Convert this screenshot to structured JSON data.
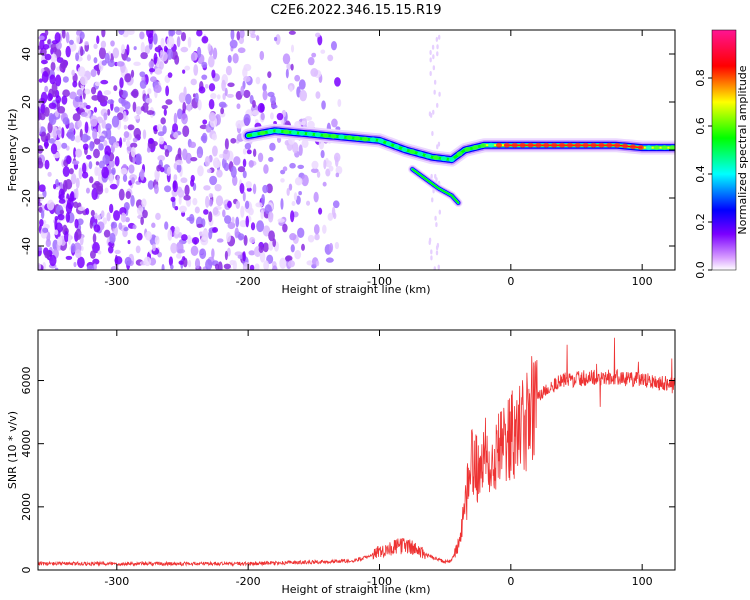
{
  "title": "C2E6.2022.346.15.15.R19",
  "chart_data": [
    {
      "type": "heatmap",
      "xlabel": "Height of straight line (km)",
      "ylabel": "Frequency (Hz)",
      "xlim": [
        -360,
        125
      ],
      "ylim": [
        -50,
        50
      ],
      "x_ticks": [
        -300,
        -200,
        -100,
        0,
        100
      ],
      "y_ticks": [
        -40,
        -20,
        0,
        20,
        40
      ],
      "colorbar": {
        "label": "Normalized spectral amplitude",
        "range": [
          0,
          1
        ],
        "ticks": [
          0.0,
          0.2,
          0.4,
          0.6,
          0.8
        ],
        "colors": [
          "#ffffff",
          "#d9a0ff",
          "#7a00ff",
          "#0000ff",
          "#00ffff",
          "#00ff00",
          "#ffff00",
          "#ff0000",
          "#ff1493"
        ]
      },
      "ridge": {
        "x": [
          -200,
          -180,
          -160,
          -140,
          -120,
          -100,
          -80,
          -60,
          -45,
          -35,
          -20,
          0,
          20,
          50,
          80,
          100,
          125
        ],
        "y": [
          6,
          8,
          7,
          6,
          5,
          4,
          0,
          -3,
          -4,
          0,
          2,
          2,
          2,
          2,
          2,
          1,
          1
        ]
      },
      "branch": {
        "x": [
          -75,
          -65,
          -55,
          -45,
          -40
        ],
        "y": [
          -8,
          -12,
          -16,
          -19,
          -22
        ]
      }
    },
    {
      "type": "line",
      "xlabel": "Height of straight line (km)",
      "ylabel": "SNR (10 * v/v)",
      "xlim": [
        -360,
        125
      ],
      "ylim": [
        0,
        7600
      ],
      "x_ticks": [
        -300,
        -200,
        -100,
        0,
        100
      ],
      "y_ticks": [
        0,
        2000,
        4000,
        6000
      ],
      "color": "#ee3333",
      "envelope": {
        "x": [
          -360,
          -200,
          -150,
          -120,
          -110,
          -100,
          -90,
          -80,
          -70,
          -60,
          -50,
          -45,
          -40,
          -35,
          -30,
          -25,
          -20,
          -10,
          0,
          10,
          20,
          30,
          40,
          60,
          80,
          100,
          125
        ],
        "y": [
          200,
          200,
          250,
          300,
          400,
          600,
          700,
          800,
          600,
          400,
          250,
          300,
          800,
          1800,
          3500,
          3200,
          3600,
          3800,
          4200,
          4500,
          5500,
          5800,
          6000,
          6100,
          6100,
          6000,
          5900
        ]
      }
    }
  ]
}
